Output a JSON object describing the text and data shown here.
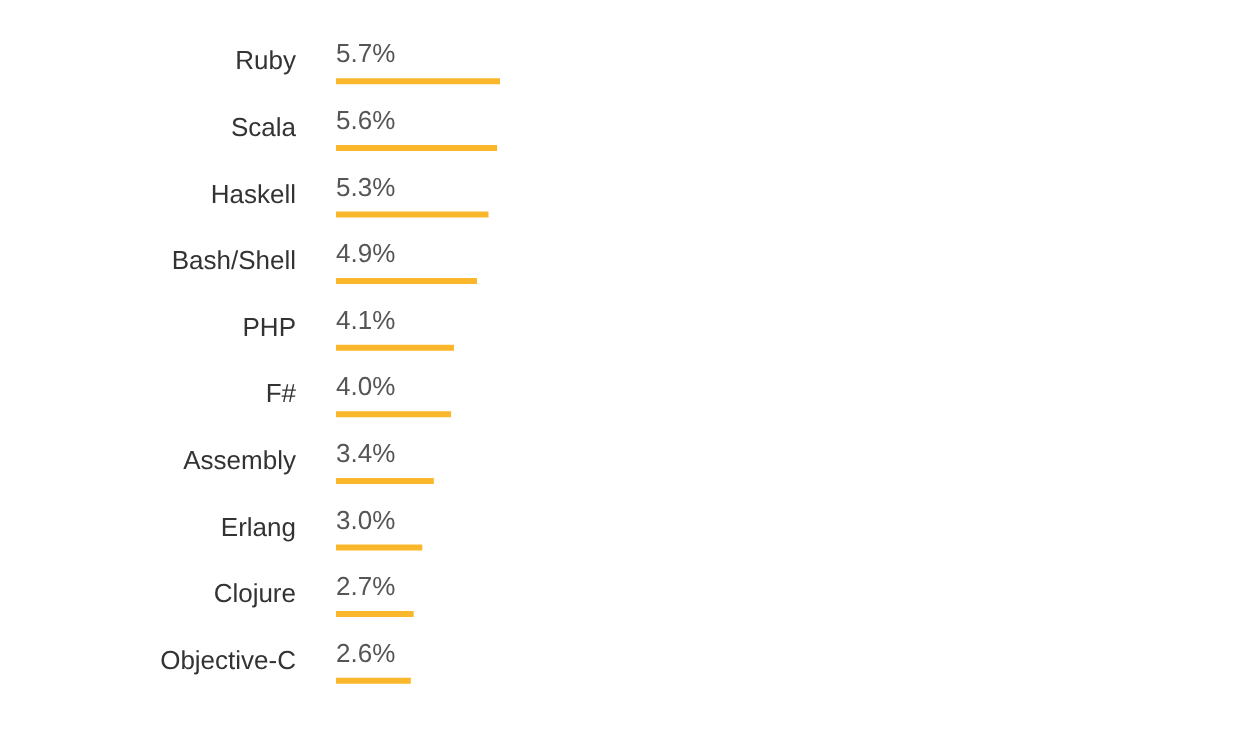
{
  "chart_data": {
    "type": "bar",
    "orientation": "horizontal",
    "categories": [
      "Ruby",
      "Scala",
      "Haskell",
      "Bash/Shell",
      "PHP",
      "F#",
      "Assembly",
      "Erlang",
      "Clojure",
      "Objective-C"
    ],
    "values": [
      5.7,
      5.6,
      5.3,
      4.9,
      4.1,
      4.0,
      3.4,
      3.0,
      2.7,
      2.6
    ],
    "value_labels": [
      "5.7%",
      "5.6%",
      "5.3%",
      "4.9%",
      "4.1%",
      "4.0%",
      "3.4%",
      "3.0%",
      "2.7%",
      "2.6%"
    ],
    "color": "#fbb72c"
  }
}
